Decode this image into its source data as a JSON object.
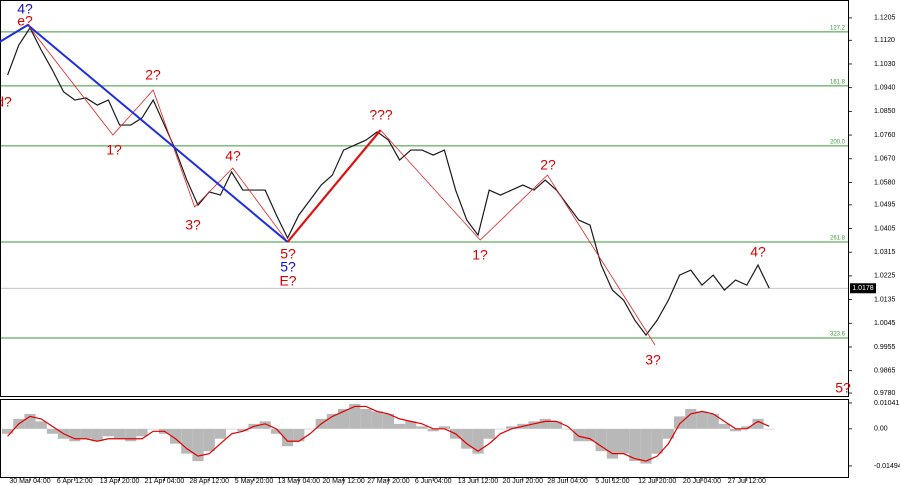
{
  "chart_data": [
    {
      "type": "line",
      "categories": [
        null,
        null,
        "30 Mar 04:00",
        null,
        null,
        null,
        "6 Apr 12:00",
        null,
        null,
        null,
        "13 Apr 20:00",
        null,
        null,
        null,
        "21 Apr 04:00",
        null,
        null,
        null,
        "28 Apr 12:00",
        null,
        null,
        null,
        "5 May 20:00",
        null,
        null,
        null,
        "13 May 04:00",
        null,
        null,
        null,
        "20 May 12:00",
        null,
        null,
        null,
        "27 May 20:00",
        null,
        null,
        null,
        "6 Jun 04:00",
        null,
        null,
        null,
        "13 Jun 12:00",
        null,
        null,
        null,
        "20 Jun 20:00",
        null,
        null,
        null,
        "28 Jun 04:00",
        null,
        null,
        null,
        "5 Jul 12:00",
        null,
        null,
        null,
        "12 Jul 20:00",
        null,
        null,
        null,
        "20 Jul 04:00",
        null,
        null,
        null,
        "27 Jul 12:00",
        null,
        null
      ],
      "values": [
        1.0988,
        1.1102,
        1.1167,
        1.1083,
        1.1007,
        1.0924,
        1.0893,
        1.0901,
        1.0874,
        1.0893,
        1.0798,
        1.0798,
        1.0825,
        1.0893,
        1.0798,
        1.0703,
        1.0589,
        1.0494,
        1.0544,
        1.0532,
        1.062,
        1.0551,
        1.0551,
        1.0551,
        1.0456,
        1.0369,
        1.0456,
        1.0513,
        1.057,
        1.0608,
        1.0703,
        1.0722,
        1.0741,
        1.0772,
        1.0741,
        1.0665,
        1.0703,
        1.0703,
        1.0684,
        1.0703,
        1.0551,
        1.0437,
        1.038,
        1.0551,
        1.0532,
        1.0551,
        1.057,
        1.0551,
        1.0589,
        1.0551,
        1.0494,
        1.0437,
        1.0418,
        1.0266,
        1.0171,
        1.0133,
        1.0057,
        1.0,
        1.0057,
        1.0133,
        1.0228,
        1.0247,
        1.019,
        1.0228,
        1.0171,
        1.0209,
        1.019,
        1.0266,
        1.0178
      ],
      "color": "#1a1a1a",
      "ylim": [
        0.9765,
        1.1273
      ],
      "yticks": [
        1.1205,
        {
          "value": 1.112,
          "label": "1.1120"
        },
        {
          "value": 1.103,
          "label": "1.1030"
        },
        {
          "value": 1.094,
          "label": "1.0940"
        },
        {
          "value": 1.085,
          "label": "1.0850"
        },
        {
          "value": 1.076,
          "label": "1.0760"
        },
        {
          "value": 1.067,
          "label": "1.0670"
        },
        {
          "value": 1.058,
          "label": "1.0580"
        },
        1.0495,
        1.0405,
        1.0315,
        1.0225,
        1.0135,
        1.0045,
        0.9955,
        0.9865,
        {
          "value": 0.978,
          "label": "0.9780"
        }
      ],
      "last_price": 1.0178,
      "levels": [
        {
          "value": 1.1152,
          "label": "127.2"
        },
        {
          "value": 1.0947,
          "label": "161.8"
        },
        {
          "value": 1.0719,
          "label": "200.0"
        },
        {
          "value": 1.0354,
          "label": "261.8"
        },
        {
          "value": 0.9989,
          "label": "323.6"
        }
      ],
      "level_color": "#3a9a3a",
      "wave_lines": [
        {
          "color": "#e02020",
          "width": 0.8,
          "points": [
            [
              1.8,
              1.1178
            ],
            [
              9.4,
              1.076
            ],
            [
              13,
              1.0931
            ],
            [
              16.7,
              1.0487
            ],
            [
              20.1,
              1.0635
            ],
            [
              25,
              1.0354
            ]
          ]
        },
        {
          "color": "#e02020",
          "width": 0.8,
          "points": [
            [
              33.3,
              1.0779
            ],
            [
              42.2,
              1.0361
            ],
            [
              48.2,
              1.0608
            ],
            [
              57.8,
              0.9963
            ]
          ]
        },
        {
          "color": "#2030e0",
          "width": 2,
          "points": [
            [
              -0.7,
              1.1114
            ],
            [
              1.8,
              1.1178
            ],
            [
              25,
              1.0354
            ]
          ]
        },
        {
          "color": "#e01010",
          "width": 2.2,
          "points": [
            [
              25,
              1.0354
            ],
            [
              33.3,
              1.0779
            ]
          ]
        }
      ],
      "wave_labels": [
        {
          "text": "4?",
          "color": "#1010d0"
        },
        {
          "text": "e?",
          "color": "#e00000"
        },
        {
          "text": "d?",
          "color": "#e00000"
        },
        {
          "text": "2?",
          "color": "#e00000"
        },
        {
          "text": "1?",
          "color": "#e00000"
        },
        {
          "text": "3?",
          "color": "#e00000"
        },
        {
          "text": "4?",
          "color": "#e00000"
        },
        {
          "text": "5?",
          "color": "#e00000"
        },
        {
          "text": "5?",
          "color": "#1010d0"
        },
        {
          "text": "E?",
          "color": "#e00000"
        },
        {
          "text": "???",
          "color": "#e00000"
        },
        {
          "text": "1?",
          "color": "#e00000"
        },
        {
          "text": "2?",
          "color": "#e00000"
        },
        {
          "text": "3?",
          "color": "#e00000"
        },
        {
          "text": "4?",
          "color": "#e00000"
        },
        {
          "text": "5?",
          "color": "#e00000"
        }
      ]
    },
    {
      "type": "bar",
      "values": [
        -0.002,
        0.004,
        0.006,
        0.003,
        -0.002,
        -0.004,
        -0.005,
        -0.004,
        -0.005,
        -0.003,
        -0.004,
        -0.005,
        -0.003,
        0.0,
        -0.002,
        -0.006,
        -0.01,
        -0.013,
        -0.009,
        -0.004,
        0.0,
        -0.001,
        0.002,
        0.003,
        -0.002,
        -0.007,
        -0.005,
        0.0,
        0.004,
        0.006,
        0.008,
        0.01,
        0.008,
        0.007,
        0.006,
        0.002,
        0.003,
        0.001,
        -0.001,
        0.001,
        -0.004,
        -0.008,
        -0.01,
        -0.004,
        0.0,
        0.001,
        0.002,
        0.003,
        0.004,
        0.003,
        0.0,
        -0.005,
        -0.005,
        -0.009,
        -0.012,
        -0.01,
        -0.013,
        -0.014,
        -0.01,
        -0.004,
        0.005,
        0.008,
        0.007,
        0.006,
        0.002,
        -0.001,
        0.001,
        0.004,
        0.0
      ],
      "color": "#b8b8b8",
      "signal": [
        -0.003,
        0.002,
        0.005,
        0.004,
        0.001,
        -0.002,
        -0.004,
        -0.004,
        -0.005,
        -0.004,
        -0.004,
        -0.004,
        -0.004,
        -0.001,
        -0.001,
        -0.004,
        -0.008,
        -0.011,
        -0.01,
        -0.006,
        -0.002,
        -0.001,
        0.001,
        0.002,
        0.0,
        -0.005,
        -0.005,
        -0.002,
        0.002,
        0.005,
        0.007,
        0.009,
        0.009,
        0.007,
        0.006,
        0.004,
        0.003,
        0.002,
        0.0,
        0.0,
        -0.002,
        -0.006,
        -0.009,
        -0.006,
        -0.002,
        0.0,
        0.001,
        0.002,
        0.003,
        0.003,
        0.001,
        -0.003,
        -0.004,
        -0.007,
        -0.01,
        -0.01,
        -0.012,
        -0.013,
        -0.011,
        -0.006,
        0.002,
        0.006,
        0.007,
        0.006,
        0.003,
        0.0,
        0.0,
        0.003,
        0.001
      ],
      "signal_color": "#e00000",
      "ylim": [
        -0.0198,
        0.012
      ],
      "yticks": [
        0.01041,
        {
          "value": 0,
          "label": "0.00"
        },
        -0.01494
      ]
    }
  ]
}
